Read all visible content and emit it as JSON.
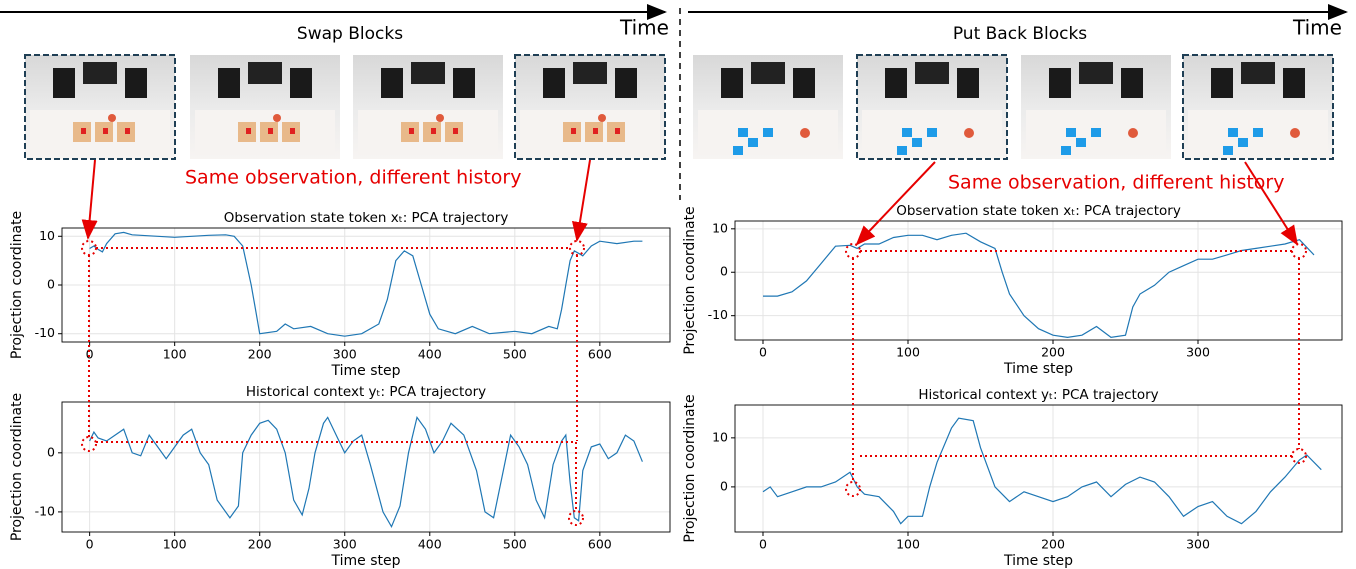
{
  "figure": {
    "left_title": "Swap Blocks",
    "right_title": "Put Back Blocks",
    "time_left": "Time",
    "time_right": "Time",
    "note_left": "Same observation, different history",
    "note_right": "Same observation, different history"
  },
  "chart_data": [
    {
      "type": "line",
      "title": "Observation state token xₜ: PCA trajectory",
      "xlabel": "Time step",
      "ylabel": "Projection coordinate",
      "color": "#1f77b4",
      "grid": true,
      "xlim": [
        -32.5,
        682.5
      ],
      "ylim": [
        -11.7,
        11.7
      ],
      "xticks": [
        0,
        100,
        200,
        300,
        400,
        500,
        600
      ],
      "yticks": [
        -10,
        0,
        10
      ],
      "x": [
        0,
        5,
        10,
        15,
        20,
        30,
        40,
        50,
        60,
        80,
        100,
        120,
        140,
        160,
        170,
        180,
        190,
        195,
        200,
        220,
        230,
        240,
        260,
        280,
        300,
        320,
        340,
        350,
        360,
        370,
        380,
        390,
        400,
        410,
        430,
        450,
        470,
        500,
        520,
        540,
        550,
        555,
        560,
        565,
        570,
        575,
        580,
        590,
        600,
        620,
        640,
        650
      ],
      "values": [
        7.5,
        8,
        7.3,
        6.8,
        8.5,
        10.5,
        10.8,
        10.3,
        10.2,
        10,
        9.8,
        10,
        10.2,
        10.3,
        10,
        8,
        0,
        -5,
        -10,
        -9.5,
        -8,
        -9,
        -8.5,
        -10,
        -10.5,
        -10,
        -8,
        -3,
        5,
        7,
        6,
        0,
        -6,
        -9,
        -10,
        -8.5,
        -10,
        -9.5,
        -10,
        -8.5,
        -9,
        -5,
        0,
        5,
        7,
        6.5,
        6,
        8,
        9,
        8.5,
        9,
        9
      ]
    },
    {
      "type": "line",
      "title": "Historical context yₜ: PCA trajectory",
      "xlabel": "Time step",
      "ylabel": "Projection coordinate",
      "color": "#1f77b4",
      "grid": true,
      "xlim": [
        -32.5,
        682.5
      ],
      "ylim": [
        -13.4,
        8.6
      ],
      "xticks": [
        0,
        100,
        200,
        300,
        400,
        500,
        600
      ],
      "yticks": [
        -10,
        0
      ],
      "x": [
        0,
        5,
        10,
        20,
        30,
        40,
        50,
        60,
        70,
        80,
        90,
        100,
        110,
        120,
        130,
        140,
        150,
        165,
        175,
        180,
        190,
        200,
        210,
        220,
        230,
        240,
        250,
        258,
        265,
        275,
        280,
        290,
        300,
        310,
        320,
        330,
        345,
        355,
        365,
        375,
        385,
        395,
        405,
        415,
        425,
        440,
        455,
        465,
        475,
        485,
        495,
        505,
        515,
        525,
        535,
        545,
        555,
        560,
        565,
        570,
        575,
        580,
        590,
        600,
        610,
        620,
        630,
        640,
        650
      ],
      "values": [
        2,
        3.5,
        2.5,
        2,
        3,
        4,
        0,
        -0.5,
        3,
        1,
        -1,
        1,
        3,
        4,
        0,
        -2,
        -8,
        -11,
        -9,
        0,
        3,
        5,
        5.5,
        4,
        0,
        -8,
        -10.5,
        -6,
        0,
        5,
        6,
        3,
        0,
        2,
        3,
        -2,
        -10,
        -12.5,
        -9,
        0,
        6,
        4,
        0,
        2,
        5,
        3,
        -3,
        -10,
        -11,
        -4,
        3,
        1,
        -2,
        -8,
        -11,
        -2,
        2,
        3,
        -5,
        -11,
        -11.5,
        -3,
        1,
        1.5,
        -1,
        0,
        3,
        2,
        -1.5
      ]
    },
    {
      "type": "line",
      "title": "Observation state token xₜ: PCA trajectory",
      "xlabel": "Time step",
      "ylabel": "Projection coordinate",
      "color": "#1f77b4",
      "grid": true,
      "xlim": [
        -19.3,
        399.3
      ],
      "ylim": [
        -15.6,
        11.8
      ],
      "xticks": [
        0,
        100,
        200,
        300
      ],
      "yticks": [
        -10,
        0,
        10
      ],
      "x": [
        0,
        10,
        20,
        30,
        40,
        50,
        60,
        65,
        70,
        80,
        90,
        100,
        110,
        120,
        130,
        140,
        150,
        160,
        165,
        170,
        180,
        190,
        200,
        210,
        220,
        230,
        240,
        250,
        255,
        260,
        270,
        280,
        290,
        300,
        310,
        320,
        330,
        340,
        350,
        360,
        370,
        380
      ],
      "values": [
        -5.5,
        -5.5,
        -4.5,
        -2,
        2,
        6,
        6.2,
        5.5,
        6.5,
        6.5,
        8,
        8.5,
        8.5,
        7.5,
        8.5,
        9,
        7,
        5.5,
        0,
        -5,
        -10,
        -13,
        -14.5,
        -15,
        -14.5,
        -12.5,
        -15,
        -14.5,
        -8,
        -5,
        -3,
        0,
        1.5,
        3,
        3,
        4,
        5,
        5.5,
        6,
        6.5,
        7.5,
        4
      ]
    },
    {
      "type": "line",
      "title": "Historical context yₜ: PCA trajectory",
      "xlabel": "Time step",
      "ylabel": "Projection coordinate",
      "color": "#1f77b4",
      "grid": true,
      "xlim": [
        -19.3,
        399.3
      ],
      "ylim": [
        -9.2,
        16.7
      ],
      "xticks": [
        0,
        100,
        200,
        300
      ],
      "yticks": [
        0,
        10
      ],
      "x": [
        0,
        5,
        10,
        20,
        30,
        40,
        50,
        60,
        65,
        70,
        80,
        90,
        95,
        100,
        110,
        115,
        120,
        130,
        135,
        145,
        150,
        160,
        170,
        180,
        190,
        200,
        210,
        220,
        230,
        240,
        250,
        260,
        270,
        280,
        290,
        300,
        310,
        320,
        330,
        340,
        350,
        360,
        370,
        375,
        385
      ],
      "values": [
        -1,
        0,
        -2,
        -1,
        0,
        0,
        1,
        3,
        0,
        -1.5,
        -2,
        -5,
        -7.5,
        -6,
        -6,
        0,
        5,
        12,
        14,
        13.5,
        8,
        0,
        -3,
        -1,
        -2,
        -3,
        -2,
        0,
        1,
        -2,
        0.5,
        2,
        1,
        -2,
        -6,
        -4,
        -3,
        -6,
        -7.5,
        -5,
        -1,
        2,
        5.5,
        6.5,
        3.5
      ]
    }
  ]
}
